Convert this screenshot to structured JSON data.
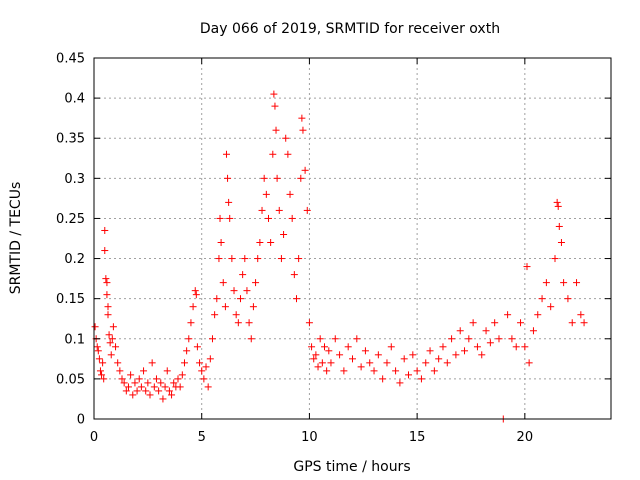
{
  "chart_data": {
    "type": "scatter",
    "title": "Day 066 of 2019, SRMTID for receiver oxth",
    "xlabel": "GPS time / hours",
    "ylabel": "SRMTID / TECUs",
    "xlim": [
      0,
      24
    ],
    "ylim": [
      0,
      0.45
    ],
    "xticks": [
      0,
      5,
      10,
      15,
      20
    ],
    "yticks": [
      0,
      0.05,
      0.1,
      0.15,
      0.2,
      0.25,
      0.3,
      0.35,
      0.4,
      0.45
    ],
    "xtick_labels": [
      "0",
      "5",
      "10",
      "15",
      "20"
    ],
    "ytick_labels": [
      "0",
      "0.05",
      "0.1",
      "0.15",
      "0.2",
      "0.25",
      "0.3",
      "0.35",
      "0.4",
      "0.45"
    ],
    "grid": true,
    "marker": "plus",
    "color": "#ff0000",
    "series": [
      {
        "name": "SRMTID",
        "points": [
          [
            0.05,
            0.115
          ],
          [
            0.1,
            0.1
          ],
          [
            0.15,
            0.09
          ],
          [
            0.2,
            0.085
          ],
          [
            0.25,
            0.075
          ],
          [
            0.3,
            0.06
          ],
          [
            0.35,
            0.055
          ],
          [
            0.4,
            0.07
          ],
          [
            0.45,
            0.05
          ],
          [
            0.5,
            0.235
          ],
          [
            0.5,
            0.21
          ],
          [
            0.55,
            0.175
          ],
          [
            0.6,
            0.17
          ],
          [
            0.6,
            0.155
          ],
          [
            0.65,
            0.14
          ],
          [
            0.65,
            0.13
          ],
          [
            0.7,
            0.105
          ],
          [
            0.75,
            0.095
          ],
          [
            0.8,
            0.08
          ],
          [
            0.85,
            0.1
          ],
          [
            0.9,
            0.115
          ],
          [
            1.0,
            0.09
          ],
          [
            1.1,
            0.07
          ],
          [
            1.2,
            0.06
          ],
          [
            1.3,
            0.05
          ],
          [
            1.4,
            0.045
          ],
          [
            1.5,
            0.035
          ],
          [
            1.6,
            0.04
          ],
          [
            1.7,
            0.055
          ],
          [
            1.8,
            0.03
          ],
          [
            1.9,
            0.045
          ],
          [
            2.0,
            0.035
          ],
          [
            2.1,
            0.05
          ],
          [
            2.2,
            0.04
          ],
          [
            2.3,
            0.06
          ],
          [
            2.4,
            0.035
          ],
          [
            2.5,
            0.045
          ],
          [
            2.6,
            0.03
          ],
          [
            2.7,
            0.07
          ],
          [
            2.8,
            0.04
          ],
          [
            2.9,
            0.05
          ],
          [
            3.0,
            0.035
          ],
          [
            3.1,
            0.045
          ],
          [
            3.2,
            0.025
          ],
          [
            3.3,
            0.04
          ],
          [
            3.4,
            0.06
          ],
          [
            3.5,
            0.035
          ],
          [
            3.6,
            0.03
          ],
          [
            3.7,
            0.045
          ],
          [
            3.8,
            0.04
          ],
          [
            3.9,
            0.05
          ],
          [
            4.0,
            0.04
          ],
          [
            4.1,
            0.055
          ],
          [
            4.2,
            0.07
          ],
          [
            4.3,
            0.085
          ],
          [
            4.4,
            0.1
          ],
          [
            4.5,
            0.12
          ],
          [
            4.6,
            0.14
          ],
          [
            4.7,
            0.16
          ],
          [
            4.75,
            0.155
          ],
          [
            4.8,
            0.09
          ],
          [
            4.9,
            0.07
          ],
          [
            5.0,
            0.06
          ],
          [
            5.1,
            0.05
          ],
          [
            5.2,
            0.065
          ],
          [
            5.3,
            0.04
          ],
          [
            5.4,
            0.075
          ],
          [
            5.5,
            0.1
          ],
          [
            5.6,
            0.13
          ],
          [
            5.7,
            0.15
          ],
          [
            5.8,
            0.2
          ],
          [
            5.85,
            0.25
          ],
          [
            5.9,
            0.22
          ],
          [
            6.0,
            0.17
          ],
          [
            6.1,
            0.14
          ],
          [
            6.15,
            0.33
          ],
          [
            6.2,
            0.3
          ],
          [
            6.25,
            0.27
          ],
          [
            6.3,
            0.25
          ],
          [
            6.4,
            0.2
          ],
          [
            6.5,
            0.16
          ],
          [
            6.6,
            0.13
          ],
          [
            6.7,
            0.12
          ],
          [
            6.8,
            0.15
          ],
          [
            6.9,
            0.18
          ],
          [
            7.0,
            0.2
          ],
          [
            7.1,
            0.16
          ],
          [
            7.2,
            0.12
          ],
          [
            7.3,
            0.1
          ],
          [
            7.4,
            0.14
          ],
          [
            7.5,
            0.17
          ],
          [
            7.6,
            0.2
          ],
          [
            7.7,
            0.22
          ],
          [
            7.8,
            0.26
          ],
          [
            7.9,
            0.3
          ],
          [
            8.0,
            0.28
          ],
          [
            8.1,
            0.25
          ],
          [
            8.2,
            0.22
          ],
          [
            8.3,
            0.33
          ],
          [
            8.35,
            0.405
          ],
          [
            8.4,
            0.39
          ],
          [
            8.45,
            0.36
          ],
          [
            8.5,
            0.3
          ],
          [
            8.6,
            0.26
          ],
          [
            8.7,
            0.2
          ],
          [
            8.8,
            0.23
          ],
          [
            8.9,
            0.35
          ],
          [
            9.0,
            0.33
          ],
          [
            9.1,
            0.28
          ],
          [
            9.2,
            0.25
          ],
          [
            9.3,
            0.18
          ],
          [
            9.4,
            0.15
          ],
          [
            9.5,
            0.2
          ],
          [
            9.6,
            0.3
          ],
          [
            9.65,
            0.375
          ],
          [
            9.7,
            0.36
          ],
          [
            9.8,
            0.31
          ],
          [
            9.9,
            0.26
          ],
          [
            10.0,
            0.12
          ],
          [
            10.1,
            0.09
          ],
          [
            10.2,
            0.075
          ],
          [
            10.3,
            0.08
          ],
          [
            10.4,
            0.065
          ],
          [
            10.5,
            0.1
          ],
          [
            10.6,
            0.07
          ],
          [
            10.7,
            0.09
          ],
          [
            10.8,
            0.06
          ],
          [
            10.9,
            0.085
          ],
          [
            11.0,
            0.07
          ],
          [
            11.2,
            0.1
          ],
          [
            11.4,
            0.08
          ],
          [
            11.6,
            0.06
          ],
          [
            11.8,
            0.09
          ],
          [
            12.0,
            0.075
          ],
          [
            12.2,
            0.1
          ],
          [
            12.4,
            0.065
          ],
          [
            12.6,
            0.085
          ],
          [
            12.8,
            0.07
          ],
          [
            13.0,
            0.06
          ],
          [
            13.2,
            0.08
          ],
          [
            13.4,
            0.05
          ],
          [
            13.6,
            0.07
          ],
          [
            13.8,
            0.09
          ],
          [
            14.0,
            0.06
          ],
          [
            14.2,
            0.045
          ],
          [
            14.4,
            0.075
          ],
          [
            14.6,
            0.055
          ],
          [
            14.8,
            0.08
          ],
          [
            15.0,
            0.06
          ],
          [
            15.2,
            0.05
          ],
          [
            15.4,
            0.07
          ],
          [
            15.6,
            0.085
          ],
          [
            15.8,
            0.06
          ],
          [
            16.0,
            0.075
          ],
          [
            16.2,
            0.09
          ],
          [
            16.4,
            0.07
          ],
          [
            16.6,
            0.1
          ],
          [
            16.8,
            0.08
          ],
          [
            17.0,
            0.11
          ],
          [
            17.2,
            0.085
          ],
          [
            17.4,
            0.1
          ],
          [
            17.6,
            0.12
          ],
          [
            17.8,
            0.09
          ],
          [
            18.0,
            0.08
          ],
          [
            18.2,
            0.11
          ],
          [
            18.4,
            0.095
          ],
          [
            18.6,
            0.12
          ],
          [
            18.8,
            0.1
          ],
          [
            19.0,
            0.0
          ],
          [
            19.2,
            0.13
          ],
          [
            19.4,
            0.1
          ],
          [
            19.6,
            0.09
          ],
          [
            19.8,
            0.12
          ],
          [
            20.0,
            0.09
          ],
          [
            20.1,
            0.19
          ],
          [
            20.2,
            0.07
          ],
          [
            20.4,
            0.11
          ],
          [
            20.6,
            0.13
          ],
          [
            20.8,
            0.15
          ],
          [
            21.0,
            0.17
          ],
          [
            21.2,
            0.14
          ],
          [
            21.4,
            0.2
          ],
          [
            21.5,
            0.27
          ],
          [
            21.55,
            0.265
          ],
          [
            21.6,
            0.24
          ],
          [
            21.7,
            0.22
          ],
          [
            21.8,
            0.17
          ],
          [
            22.0,
            0.15
          ],
          [
            22.2,
            0.12
          ],
          [
            22.4,
            0.17
          ],
          [
            22.6,
            0.13
          ],
          [
            22.75,
            0.12
          ]
        ]
      }
    ]
  }
}
